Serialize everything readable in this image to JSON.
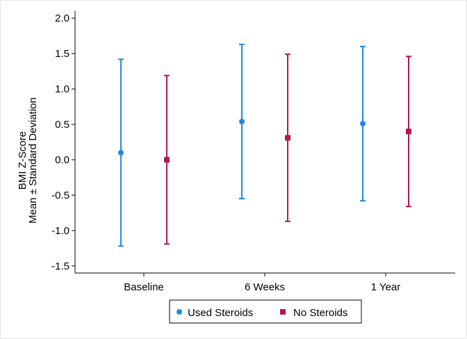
{
  "chart_data": {
    "type": "scatter",
    "title": "",
    "ylabel_lines": [
      "BMI Z-Score",
      "Mean ± Standard Deviation"
    ],
    "xlabel": "",
    "categories": [
      "Baseline",
      "6 Weeks",
      "1 Year"
    ],
    "ylim": [
      -1.6,
      2.1
    ],
    "yticks": [
      -1.5,
      -1.0,
      -0.5,
      0.0,
      0.5,
      1.0,
      1.5,
      2.0
    ],
    "ytick_labels": [
      "-1.5",
      "-1.0",
      "-0.5",
      "0.0",
      "0.5",
      "1.0",
      "1.5",
      "2.0"
    ],
    "grid": false,
    "legend_position": "bottom",
    "series": [
      {
        "name": "Used Steroids",
        "marker": "circle",
        "color": "#1f88e6",
        "mean": [
          0.1,
          0.54,
          0.51
        ],
        "upper": [
          1.42,
          1.63,
          1.6
        ],
        "lower": [
          -1.22,
          -0.55,
          -0.58
        ]
      },
      {
        "name": "No Steroids",
        "marker": "square",
        "color": "#b5174a",
        "mean": [
          0.0,
          0.31,
          0.4
        ],
        "upper": [
          1.19,
          1.49,
          1.46
        ],
        "lower": [
          -1.19,
          -0.87,
          -0.66
        ]
      }
    ]
  }
}
